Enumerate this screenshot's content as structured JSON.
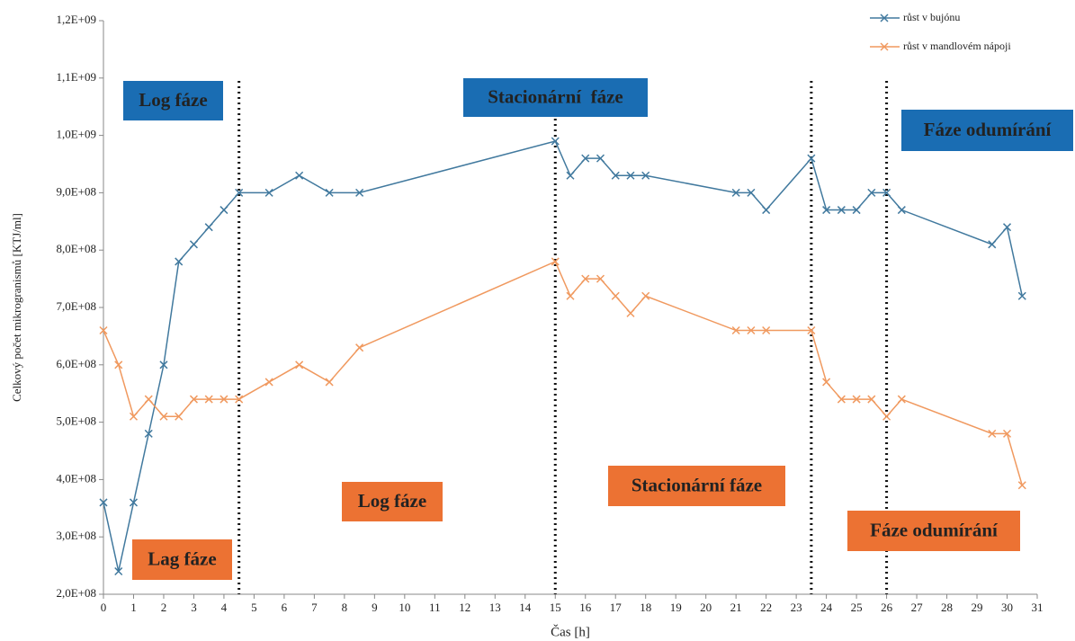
{
  "chart_data": {
    "type": "line",
    "y_label": "Celkový počet mikrogranismů [KTJ/ml]",
    "x_label": "Čas [h]",
    "xlim": [
      0,
      31
    ],
    "xticks": [
      0,
      1,
      2,
      3,
      4,
      5,
      6,
      7,
      8,
      9,
      10,
      11,
      12,
      13,
      14,
      15,
      16,
      17,
      18,
      19,
      20,
      21,
      22,
      23,
      24,
      25,
      26,
      27,
      28,
      29,
      30,
      31
    ],
    "ylim": [
      200000000,
      1200000000
    ],
    "yticks": [
      {
        "value": 200000000,
        "label": "2,0E+08"
      },
      {
        "value": 300000000,
        "label": "3,0E+08"
      },
      {
        "value": 400000000,
        "label": "4,0E+08"
      },
      {
        "value": 500000000,
        "label": "5,0E+08"
      },
      {
        "value": 600000000,
        "label": "6,0E+08"
      },
      {
        "value": 700000000,
        "label": "7,0E+08"
      },
      {
        "value": 800000000,
        "label": "8,0E+08"
      },
      {
        "value": 900000000,
        "label": "9,0E+08"
      },
      {
        "value": 1000000000,
        "label": "1,0E+09"
      },
      {
        "value": 1100000000,
        "label": "1,1E+09"
      },
      {
        "value": 1200000000,
        "label": "1,2E+09"
      }
    ],
    "grid": false,
    "legend": "top-right",
    "phase_lines": [
      4.5,
      15,
      23.5,
      26
    ],
    "x": [
      0,
      0.5,
      1,
      1.5,
      2,
      2.5,
      3,
      3.5,
      4,
      4.5,
      5.5,
      6.5,
      7.5,
      8.5,
      15,
      15.5,
      16,
      16.5,
      17,
      17.5,
      18,
      21,
      21.5,
      22,
      23.5,
      24,
      24.5,
      25,
      25.5,
      26,
      26.5,
      29.5,
      30,
      30.5
    ],
    "series": [
      {
        "name": "růst v bujónu",
        "color": "#41799e",
        "values": [
          360000000,
          240000000,
          360000000,
          480000000,
          600000000,
          780000000,
          810000000,
          840000000,
          870000000,
          900000000,
          900000000,
          930000000,
          900000000,
          900000000,
          990000000,
          930000000,
          960000000,
          960000000,
          930000000,
          930000000,
          930000000,
          900000000,
          900000000,
          870000000,
          960000000,
          870000000,
          870000000,
          870000000,
          900000000,
          900000000,
          870000000,
          810000000,
          840000000,
          720000000
        ]
      },
      {
        "name": "růst v mandlovém nápoji",
        "color": "#f0995f",
        "values": [
          660000000,
          600000000,
          510000000,
          540000000,
          510000000,
          510000000,
          540000000,
          540000000,
          540000000,
          540000000,
          570000000,
          600000000,
          570000000,
          630000000,
          780000000,
          720000000,
          750000000,
          750000000,
          720000000,
          690000000,
          720000000,
          660000000,
          660000000,
          660000000,
          660000000,
          570000000,
          540000000,
          540000000,
          540000000,
          510000000,
          540000000,
          480000000,
          480000000,
          390000000
        ]
      }
    ],
    "annotations": [
      {
        "text": "Log fáze",
        "color": "#1a6db3"
      },
      {
        "text": "Stacionární  fáze",
        "color": "#1a6db3"
      },
      {
        "text": "Fáze odumírání",
        "color": "#1a6db3"
      },
      {
        "text": "Lag fáze",
        "color": "#ec7233"
      },
      {
        "text": "Log fáze",
        "color": "#ec7233"
      },
      {
        "text": "Stacionární fáze",
        "color": "#ec7233"
      },
      {
        "text": "Fáze odumírání",
        "color": "#ec7233"
      }
    ]
  }
}
